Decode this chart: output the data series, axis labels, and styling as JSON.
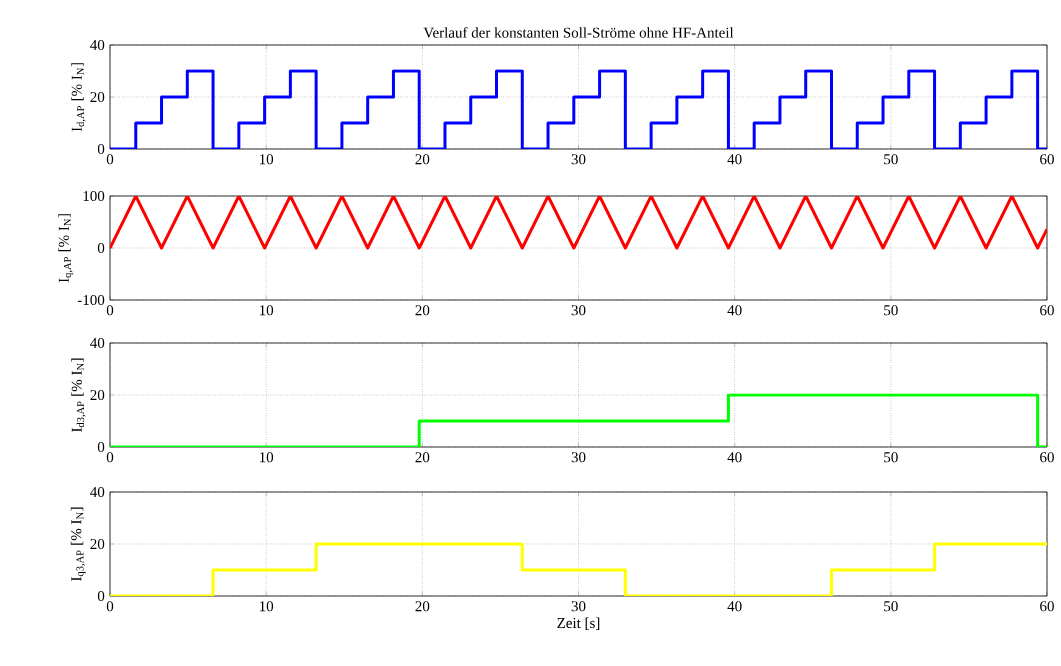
{
  "chart_data": [
    {
      "type": "step",
      "title": "Verlauf der konstanten Soll-Ströme ohne HF-Anteil",
      "ylabel": "I$_{d,AP}$ [% I$_{N}$]",
      "grid": true,
      "xlim": [
        0,
        60
      ],
      "ylim": [
        0,
        40
      ],
      "xticks": [
        0,
        10,
        20,
        30,
        40,
        50,
        60
      ],
      "yticks": [
        0,
        20,
        40
      ],
      "series": [
        {
          "color": "#0000ff",
          "x": [
            0,
            1.65,
            3.3,
            4.95,
            6.6,
            8.25,
            9.9,
            11.55,
            13.2,
            14.85,
            16.5,
            18.15,
            19.8,
            21.45,
            23.1,
            24.75,
            26.4,
            28.05,
            29.7,
            31.35,
            33,
            34.65,
            36.3,
            37.95,
            39.6,
            41.25,
            42.9,
            44.55,
            46.2,
            47.85,
            49.5,
            51.15,
            52.8,
            54.45,
            56.1,
            57.75,
            59.4,
            60
          ],
          "values": [
            0,
            10,
            20,
            30,
            0,
            10,
            20,
            30,
            0,
            10,
            20,
            30,
            0,
            10,
            20,
            30,
            0,
            10,
            20,
            30,
            0,
            10,
            20,
            30,
            0,
            10,
            20,
            30,
            0,
            10,
            20,
            30,
            0,
            10,
            20,
            30,
            0,
            0
          ]
        }
      ]
    },
    {
      "type": "line",
      "ylabel": "I$_{q,AP}$ [% I$_{N}$]",
      "grid": true,
      "xlim": [
        0,
        60
      ],
      "ylim": [
        -100,
        100
      ],
      "xticks": [
        0,
        10,
        20,
        30,
        40,
        50,
        60
      ],
      "yticks": [
        -100,
        0,
        100
      ],
      "series": [
        {
          "color": "#ff0000",
          "x": [
            0,
            1.65,
            3.3,
            4.95,
            6.6,
            8.25,
            9.9,
            11.55,
            13.2,
            14.85,
            16.5,
            18.15,
            19.8,
            21.45,
            23.1,
            24.75,
            26.4,
            28.05,
            29.7,
            31.35,
            33,
            34.65,
            36.3,
            37.95,
            39.6,
            41.25,
            42.9,
            44.55,
            46.2,
            47.85,
            49.5,
            51.15,
            52.8,
            54.45,
            56.1,
            57.75,
            59.4,
            60
          ],
          "values": [
            0,
            100,
            0,
            100,
            0,
            100,
            0,
            100,
            0,
            100,
            0,
            100,
            0,
            100,
            0,
            100,
            0,
            100,
            0,
            100,
            0,
            100,
            0,
            100,
            0,
            100,
            0,
            100,
            0,
            100,
            0,
            100,
            0,
            100,
            0,
            100,
            0,
            36
          ]
        }
      ]
    },
    {
      "type": "step",
      "ylabel": "I$_{d3,AP}$ [% I$_{N}$]",
      "grid": true,
      "xlim": [
        0,
        60
      ],
      "ylim": [
        0,
        40
      ],
      "xticks": [
        0,
        10,
        20,
        30,
        40,
        50,
        60
      ],
      "yticks": [
        0,
        20,
        40
      ],
      "series": [
        {
          "color": "#00ff00",
          "x": [
            0,
            19.8,
            39.6,
            59.4,
            60
          ],
          "values": [
            0,
            10,
            20,
            0,
            0
          ]
        }
      ]
    },
    {
      "type": "step",
      "ylabel": "I$_{q3,AP}$ [% I$_{N}$]",
      "xlabel": "Zeit [s]",
      "grid": true,
      "xlim": [
        0,
        60
      ],
      "ylim": [
        0,
        40
      ],
      "xticks": [
        0,
        10,
        20,
        30,
        40,
        50,
        60
      ],
      "yticks": [
        0,
        20,
        40
      ],
      "series": [
        {
          "color": "#ffff00",
          "x": [
            0,
            6.6,
            13.2,
            26.4,
            33,
            46.2,
            52.8,
            60
          ],
          "values": [
            0,
            10,
            20,
            10,
            0,
            10,
            20,
            20
          ]
        }
      ]
    }
  ]
}
